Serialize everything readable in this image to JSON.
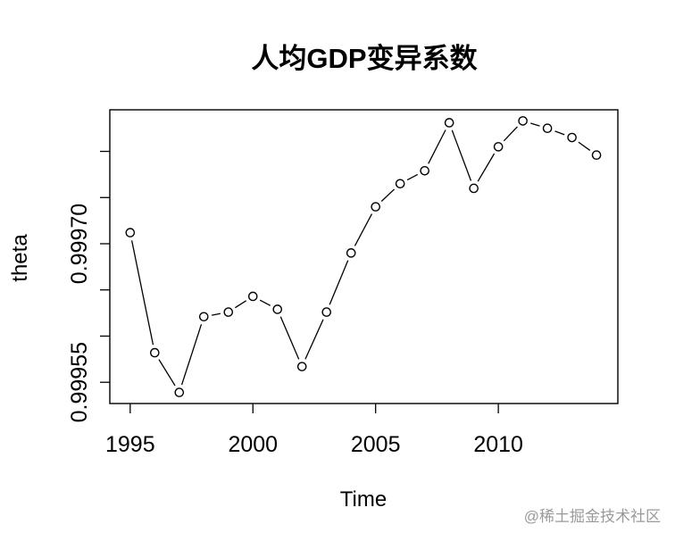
{
  "chart_data": {
    "type": "line",
    "marker": "open-circle",
    "title": "人均GDP变异系数",
    "xlabel": "Time",
    "ylabel": "theta",
    "x": [
      1995,
      1996,
      1997,
      1998,
      1999,
      2000,
      2001,
      2002,
      2003,
      2004,
      2005,
      2006,
      2007,
      2008,
      2009,
      2010,
      2011,
      2012,
      2013,
      2014
    ],
    "y": [
      0.999712,
      0.999582,
      0.999539,
      0.999621,
      0.999626,
      0.999643,
      0.999629,
      0.999567,
      0.999626,
      0.99969,
      0.99974,
      0.999765,
      0.999779,
      0.999831,
      0.99976,
      0.999805,
      0.999833,
      0.999825,
      0.999815,
      0.999796
    ],
    "xlim": [
      1994.17,
      2014.87
    ],
    "ylim": [
      0.999527,
      0.999845
    ],
    "x_ticks": [
      {
        "value": 1995,
        "label": "1995"
      },
      {
        "value": 2000,
        "label": "2000"
      },
      {
        "value": 2005,
        "label": "2005"
      },
      {
        "value": 2010,
        "label": "2010"
      }
    ],
    "y_ticks": [
      {
        "value": 0.99955,
        "label": "0.99955"
      },
      {
        "value": 0.9996,
        "label": ""
      },
      {
        "value": 0.99965,
        "label": ""
      },
      {
        "value": 0.9997,
        "label": "0.99970"
      },
      {
        "value": 0.99975,
        "label": ""
      },
      {
        "value": 0.9998,
        "label": ""
      }
    ],
    "grid": false,
    "legend": false
  },
  "watermark": "@稀土掘金技术社区",
  "colors": {
    "ink": "#000000",
    "background": "#ffffff",
    "point_fill": "#ffffff",
    "watermark": "#9a9a9a"
  }
}
